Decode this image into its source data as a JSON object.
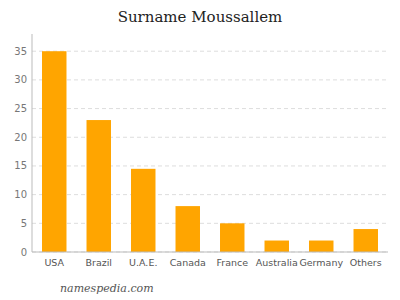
{
  "chart_data": {
    "type": "bar",
    "title": "Surname Moussallem",
    "categories": [
      "USA",
      "Brazil",
      "U.A.E.",
      "Canada",
      "France",
      "Australia",
      "Germany",
      "Others"
    ],
    "values": [
      35,
      23,
      14.5,
      8,
      5,
      2,
      2,
      4
    ],
    "color": "#FFA500",
    "ylim": [
      0,
      38
    ],
    "yticks": [
      0,
      5,
      10,
      15,
      20,
      25,
      30,
      35
    ],
    "grid": true,
    "annotations": [
      "namespedia.com"
    ]
  }
}
